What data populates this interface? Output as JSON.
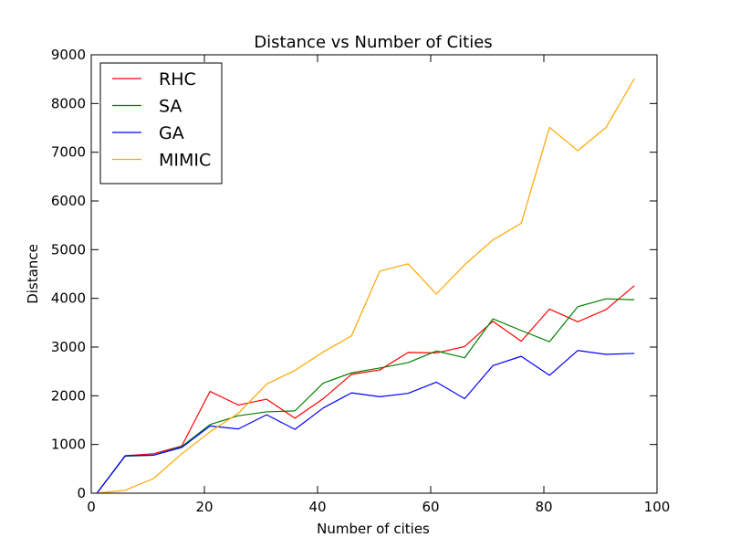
{
  "chart_data": {
    "type": "line",
    "title": "Distance vs Number of Cities",
    "xlabel": "Number of cities",
    "ylabel": "Distance",
    "xlim": [
      0,
      100
    ],
    "ylim": [
      0,
      9000
    ],
    "xticks": [
      0,
      20,
      40,
      60,
      80,
      100
    ],
    "yticks": [
      0,
      1000,
      2000,
      3000,
      4000,
      5000,
      6000,
      7000,
      8000,
      9000
    ],
    "legend_position": "top-left",
    "grid": false,
    "x": [
      1,
      6,
      11,
      16,
      21,
      26,
      31,
      36,
      41,
      46,
      51,
      56,
      61,
      66,
      71,
      76,
      81,
      86,
      91,
      96
    ],
    "series": [
      {
        "name": "RHC",
        "color": "#ff0000",
        "values": [
          0,
          770,
          810,
          970,
          2090,
          1810,
          1930,
          1540,
          1940,
          2440,
          2530,
          2890,
          2880,
          3010,
          3530,
          3120,
          3780,
          3520,
          3770,
          4260
        ]
      },
      {
        "name": "SA",
        "color": "#008000",
        "values": [
          0,
          760,
          780,
          960,
          1410,
          1590,
          1670,
          1690,
          2260,
          2470,
          2570,
          2680,
          2920,
          2780,
          3580,
          3340,
          3110,
          3830,
          3990,
          3970
        ]
      },
      {
        "name": "GA",
        "color": "#0000ff",
        "values": [
          0,
          770,
          780,
          940,
          1380,
          1320,
          1610,
          1310,
          1750,
          2060,
          1980,
          2050,
          2280,
          1940,
          2620,
          2810,
          2420,
          2930,
          2850,
          2870
        ]
      },
      {
        "name": "MIMIC",
        "color": "#ffa500",
        "values": [
          0,
          60,
          300,
          810,
          1260,
          1640,
          2240,
          2520,
          2900,
          3230,
          4560,
          4710,
          4090,
          4690,
          5200,
          5540,
          7510,
          7030,
          7510,
          8510
        ]
      }
    ]
  }
}
